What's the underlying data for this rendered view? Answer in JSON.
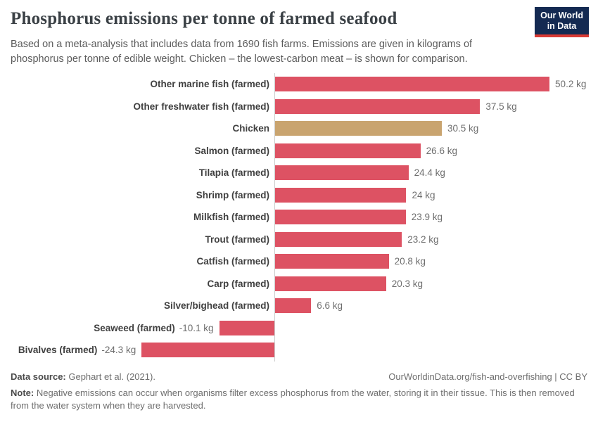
{
  "header": {
    "title": "Phosphorus emissions per tonne of farmed seafood",
    "subtitle": "Based on a meta-analysis that includes data from 1690 fish farms. Emissions are given in kilograms of phosphorus per tonne of edible weight. Chicken – the lowest-carbon meat – is shown for comparison.",
    "logo": {
      "line1": "Our World",
      "line2": "in Data"
    }
  },
  "chart_data": {
    "type": "bar",
    "orientation": "horizontal",
    "title": "Phosphorus emissions per tonne of farmed seafood",
    "unit": "kg",
    "categories": [
      "Other marine fish (farmed)",
      "Other freshwater fish (farmed)",
      "Chicken",
      "Salmon (farmed)",
      "Tilapia (farmed)",
      "Shrimp (farmed)",
      "Milkfish (farmed)",
      "Trout (farmed)",
      "Catfish (farmed)",
      "Carp (farmed)",
      "Silver/bighead (farmed)",
      "Seaweed (farmed)",
      "Bivalves (farmed)"
    ],
    "values": [
      50.2,
      37.5,
      30.5,
      26.6,
      24.4,
      24,
      23.9,
      23.2,
      20.8,
      20.3,
      6.6,
      -10.1,
      -24.3
    ],
    "value_labels": [
      "50.2 kg",
      "37.5 kg",
      "30.5 kg",
      "26.6 kg",
      "24.4 kg",
      "24 kg",
      "23.9 kg",
      "23.2 kg",
      "20.8 kg",
      "20.3 kg",
      "6.6 kg",
      "-10.1 kg",
      "-24.3 kg"
    ],
    "xlabel": "",
    "ylabel": "",
    "xlim": [
      -24.3,
      50.2
    ],
    "grid": false,
    "zero_line": true,
    "bar_color_default": "#dd5263",
    "bar_color_highlight": "#c9a46f",
    "highlight_category": "Chicken"
  },
  "footer": {
    "data_source_label": "Data source:",
    "data_source_value": " Gephart et al. (2021).",
    "link": "OurWorldinData.org/fish-and-overfishing | CC BY",
    "note_label": "Note:",
    "note_text": " Negative emissions can occur when organisms filter excess phosphorus from the water, storing it in their tissue. This is then removed from the water system when they are harvested."
  },
  "colors": {
    "bar_red": "#dd5263",
    "bar_tan": "#c9a46f",
    "axis_line": "#cccccc",
    "title_text": "#3a4045",
    "subtitle_text": "#5b5b5b",
    "category_label": "#404040",
    "value_label": "#6e6e6e",
    "logo_bg": "#142a52",
    "logo_stripe": "#d93a34"
  }
}
